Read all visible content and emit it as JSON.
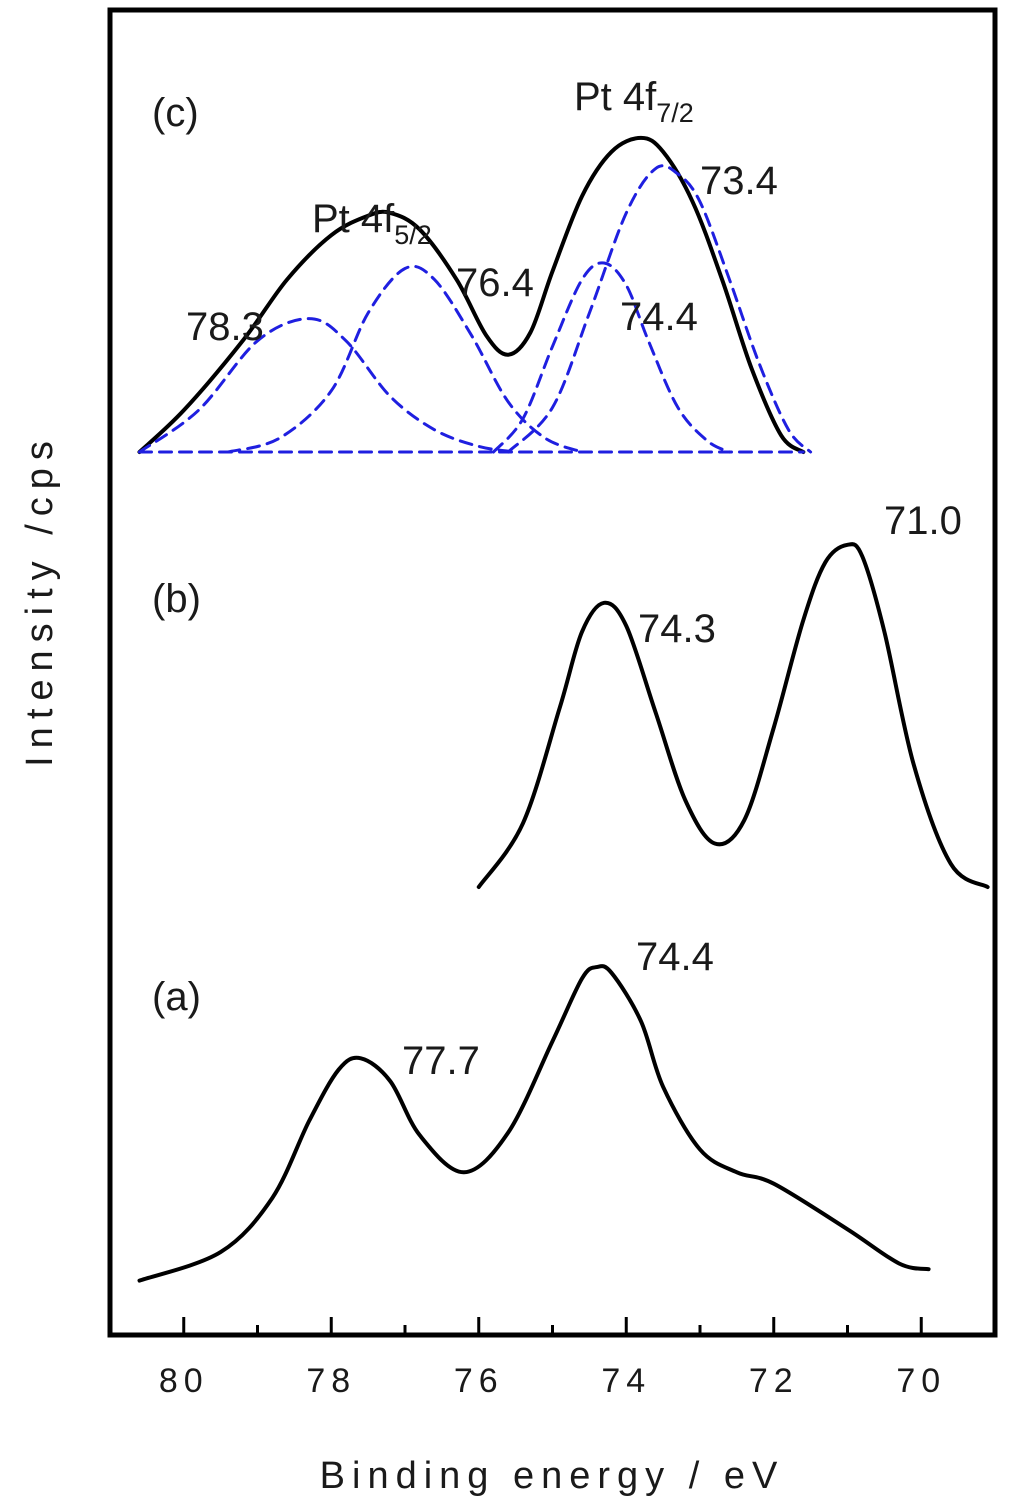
{
  "chart_data": {
    "type": "line",
    "xlabel": "Binding energy / eV",
    "ylabel": "Intensity /cps",
    "xlim": [
      81,
      69
    ],
    "x_reversed": true,
    "xticks": [
      "80",
      "78",
      "76",
      "74",
      "72",
      "70"
    ],
    "yticks": "none",
    "grid": false,
    "legend": "none",
    "colors": {
      "measured": "#000000",
      "fit": "#1f1fe0",
      "axes": "#000000"
    },
    "panels": [
      {
        "label": "(a)",
        "series": [
          {
            "style": "solid",
            "x": [
              80.6,
              79.5,
              78.8,
              78.3,
              77.9,
              77.6,
              77.2,
              76.8,
              76.2,
              75.6,
              75.0,
              74.6,
              74.4,
              74.2,
              73.8,
              73.5,
              73.0,
              72.5,
              72.0,
              71.0,
              70.3,
              69.9
            ],
            "y": [
              0.04,
              0.14,
              0.33,
              0.6,
              0.78,
              0.82,
              0.74,
              0.55,
              0.42,
              0.56,
              0.88,
              1.1,
              1.14,
              1.12,
              0.95,
              0.72,
              0.5,
              0.42,
              0.38,
              0.22,
              0.1,
              0.08
            ]
          }
        ],
        "annotations": [
          "77.7",
          "74.4"
        ]
      },
      {
        "label": "(b)",
        "series": [
          {
            "style": "solid",
            "x": [
              76.0,
              75.4,
              74.9,
              74.6,
              74.3,
              74.0,
              73.6,
              73.2,
              72.8,
              72.4,
              72.0,
              71.6,
              71.3,
              71.0,
              70.8,
              70.5,
              70.1,
              69.6,
              69.1
            ],
            "y": [
              0.0,
              0.22,
              0.62,
              0.88,
              0.98,
              0.9,
              0.6,
              0.3,
              0.15,
              0.23,
              0.55,
              0.92,
              1.12,
              1.18,
              1.14,
              0.88,
              0.42,
              0.08,
              0.0
            ]
          }
        ],
        "annotations": [
          "74.3",
          "71.0"
        ]
      },
      {
        "label": "(c)",
        "titles": [
          {
            "text": "Pt 4f",
            "sub": "5/2"
          },
          {
            "text": "Pt 4f",
            "sub": "7/2"
          }
        ],
        "series": [
          {
            "style": "solid",
            "name": "",
            "x": [
              80.6,
              80.0,
              79.2,
              78.6,
              78.0,
              77.5,
              77.2,
              76.8,
              76.3,
              75.9,
              75.6,
              75.3,
              75.0,
              74.6,
              74.2,
              73.8,
              73.5,
              73.1,
              72.7,
              72.3,
              71.9,
              71.6
            ],
            "y": [
              0.0,
              0.15,
              0.4,
              0.62,
              0.78,
              0.85,
              0.86,
              0.8,
              0.62,
              0.42,
              0.35,
              0.43,
              0.65,
              0.92,
              1.08,
              1.13,
              1.08,
              0.9,
              0.62,
              0.3,
              0.06,
              0.0
            ]
          },
          {
            "style": "dashed",
            "name": "",
            "x": [
              80.6,
              79.8,
              79.0,
              78.3,
              77.8,
              77.2,
              76.6,
              76.0,
              75.5
            ],
            "y": [
              0.0,
              0.15,
              0.4,
              0.48,
              0.4,
              0.2,
              0.08,
              0.02,
              0.0
            ]
          },
          {
            "style": "dashed",
            "name": "",
            "x": [
              79.4,
              78.7,
              78.0,
              77.5,
              77.0,
              76.6,
              76.1,
              75.6,
              75.1,
              74.6
            ],
            "y": [
              0.0,
              0.05,
              0.22,
              0.5,
              0.66,
              0.62,
              0.42,
              0.18,
              0.05,
              0.0
            ]
          },
          {
            "style": "dashed",
            "name": "",
            "x": [
              75.8,
              75.4,
              75.0,
              74.6,
              74.3,
              74.0,
              73.7,
              73.3,
              72.9,
              72.6
            ],
            "y": [
              0.0,
              0.12,
              0.38,
              0.62,
              0.68,
              0.6,
              0.4,
              0.16,
              0.04,
              0.0
            ]
          },
          {
            "style": "dashed",
            "name": "",
            "x": [
              75.6,
              75.0,
              74.5,
              74.0,
              73.6,
              73.3,
              73.0,
              72.6,
              72.2,
              71.8,
              71.5
            ],
            "y": [
              0.0,
              0.16,
              0.5,
              0.86,
              1.02,
              1.0,
              0.9,
              0.62,
              0.32,
              0.08,
              0.0
            ]
          },
          {
            "style": "dashed",
            "name": "",
            "x": [
              80.6,
              71.6
            ],
            "y": [
              0.0,
              0.0
            ]
          }
        ],
        "annotations": [
          "78.3",
          "76.4",
          "74.4",
          "73.4"
        ]
      }
    ]
  }
}
